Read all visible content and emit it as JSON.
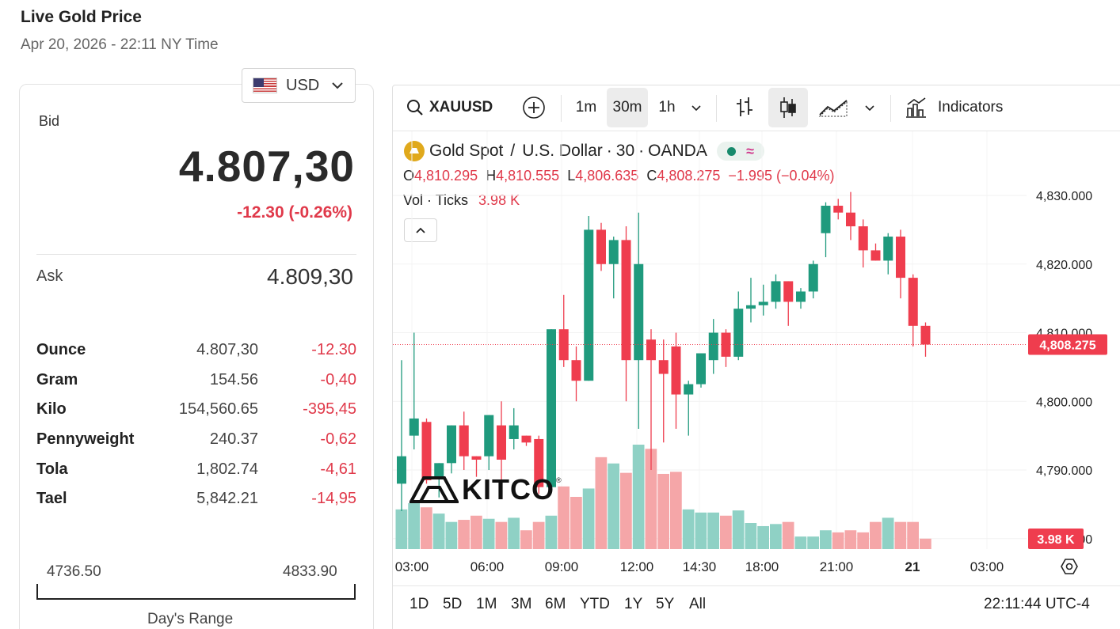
{
  "header": {
    "title": "Live Gold Price",
    "datetime": "Apr 20, 2026 - 22:11 NY Time"
  },
  "currency": {
    "code": "USD",
    "flag_icon": "us-flag-icon"
  },
  "quote": {
    "bid_label": "Bid",
    "bid": "4.807,30",
    "change": "-12.30 (-0.26%)",
    "ask_label": "Ask",
    "ask": "4.809,30"
  },
  "units": [
    {
      "name": "Ounce",
      "value": "4.807,30",
      "change": "-12.30"
    },
    {
      "name": "Gram",
      "value": "154.56",
      "change": "-0,40"
    },
    {
      "name": "Kilo",
      "value": "154,560.65",
      "change": "-395,45"
    },
    {
      "name": "Pennyweight",
      "value": "240.37",
      "change": "-0,62"
    },
    {
      "name": "Tola",
      "value": "1,802.74",
      "change": "-4,61"
    },
    {
      "name": "Tael",
      "value": "5,842.21",
      "change": "-14,95"
    }
  ],
  "day_range": {
    "low": "4736.50",
    "high": "4833.90",
    "label": "Day's Range"
  },
  "toolbar": {
    "symbol": "XAUUSD",
    "intervals": [
      "1m",
      "30m",
      "1h"
    ],
    "active_interval": "30m",
    "indicators_label": "Indicators"
  },
  "legend": {
    "name": "Gold Spot",
    "sep1": "/",
    "quote_name": "U.S. Dollar",
    "dot1": "·",
    "interval": "30",
    "dot2": "·",
    "source": "OANDA",
    "o_label": "O",
    "o": "4,810.295",
    "h_label": "H",
    "h": "4,810.555",
    "l_label": "L",
    "l": "4,806.635",
    "c_label": "C",
    "c": "4,808.275",
    "chg": "−1.995 (−0.04%)",
    "vol_label": "Vol · Ticks",
    "vol_value": "3.98 K"
  },
  "bottom": {
    "ranges": [
      "1D",
      "5D",
      "1M",
      "3M",
      "6M",
      "YTD",
      "1Y",
      "5Y",
      "All"
    ],
    "clock": "22:11:44 UTC-4"
  },
  "watermark": "KITCO",
  "colors": {
    "up": "#1f9a7d",
    "down": "#ef3d4e",
    "up_vol": "#8fd1c5",
    "down_vol": "#f5a6a8",
    "accent_red": "#e0394a"
  },
  "chart_data": {
    "type": "candlestick",
    "y_ticks": [
      "4,830.000",
      "4,820.000",
      "4,810.000",
      "4,800.000",
      "4,790.000",
      "4,780.000"
    ],
    "x_ticks": [
      "03:00",
      "06:00",
      "09:00",
      "12:00",
      "14:30",
      "18:00",
      "21:00",
      "21",
      "03:00"
    ],
    "ylim": [
      4780,
      4832
    ],
    "last_price": "4,808.275",
    "last_volume": "3.98 K",
    "candles": [
      {
        "o": 4788.0,
        "h": 4806.0,
        "l": 4784.0,
        "c": 4792.0,
        "v": 0.38
      },
      {
        "o": 4795.0,
        "h": 4810.0,
        "l": 4793.0,
        "c": 4797.5,
        "v": 0.44
      },
      {
        "o": 4797.0,
        "h": 4797.5,
        "l": 4788.0,
        "c": 4788.5,
        "v": 0.4
      },
      {
        "o": 4789.0,
        "h": 4791.0,
        "l": 4786.0,
        "c": 4791.0,
        "v": 0.34
      },
      {
        "o": 4791.0,
        "h": 4796.5,
        "l": 4789.5,
        "c": 4796.5,
        "v": 0.26
      },
      {
        "o": 4796.5,
        "h": 4798.5,
        "l": 4790.0,
        "c": 4792.0,
        "v": 0.28
      },
      {
        "o": 4792.0,
        "h": 4792.0,
        "l": 4789.0,
        "c": 4791.5,
        "v": 0.32
      },
      {
        "o": 4792.0,
        "h": 4798.0,
        "l": 4790.0,
        "c": 4798.0,
        "v": 0.29
      },
      {
        "o": 4796.5,
        "h": 4800.0,
        "l": 4786.5,
        "c": 4791.5,
        "v": 0.26
      },
      {
        "o": 4794.5,
        "h": 4799.0,
        "l": 4793.0,
        "c": 4796.5,
        "v": 0.3
      },
      {
        "o": 4795.0,
        "h": 4795.0,
        "l": 4793.5,
        "c": 4794.0,
        "v": 0.18
      },
      {
        "o": 4794.5,
        "h": 4795.0,
        "l": 4786.5,
        "c": 4787.5,
        "v": 0.26
      },
      {
        "o": 4787.5,
        "h": 4810.5,
        "l": 4787.0,
        "c": 4810.5,
        "v": 0.32
      },
      {
        "o": 4810.5,
        "h": 4815.5,
        "l": 4805.0,
        "c": 4806.0,
        "v": 0.6
      },
      {
        "o": 4806.0,
        "h": 4808.0,
        "l": 4800.0,
        "c": 4803.0,
        "v": 0.5
      },
      {
        "o": 4803.0,
        "h": 4827.0,
        "l": 4803.0,
        "c": 4825.0,
        "v": 0.58
      },
      {
        "o": 4825.0,
        "h": 4826.0,
        "l": 4819.0,
        "c": 4820.0,
        "v": 0.88
      },
      {
        "o": 4820.0,
        "h": 4824.0,
        "l": 4815.0,
        "c": 4823.5,
        "v": 0.82
      },
      {
        "o": 4823.5,
        "h": 4825.5,
        "l": 4800.0,
        "c": 4806.0,
        "v": 0.73
      },
      {
        "o": 4806.0,
        "h": 4827.5,
        "l": 4796.0,
        "c": 4820.0,
        "v": 1.0
      },
      {
        "o": 4809.0,
        "h": 4810.5,
        "l": 4790.0,
        "c": 4806.0,
        "v": 0.96
      },
      {
        "o": 4806.0,
        "h": 4809.0,
        "l": 4794.0,
        "c": 4804.0,
        "v": 0.72
      },
      {
        "o": 4808.0,
        "h": 4810.0,
        "l": 4796.0,
        "c": 4801.0,
        "v": 0.74
      },
      {
        "o": 4801.0,
        "h": 4803.0,
        "l": 4795.0,
        "c": 4802.5,
        "v": 0.38
      },
      {
        "o": 4802.5,
        "h": 4807.0,
        "l": 4802.0,
        "c": 4807.0,
        "v": 0.35
      },
      {
        "o": 4806.0,
        "h": 4812.0,
        "l": 4804.0,
        "c": 4810.0,
        "v": 0.35
      },
      {
        "o": 4810.0,
        "h": 4810.5,
        "l": 4805.0,
        "c": 4806.5,
        "v": 0.32
      },
      {
        "o": 4806.5,
        "h": 4816.0,
        "l": 4806.0,
        "c": 4813.5,
        "v": 0.37
      },
      {
        "o": 4813.5,
        "h": 4818.0,
        "l": 4811.5,
        "c": 4814.0,
        "v": 0.25
      },
      {
        "o": 4814.0,
        "h": 4817.0,
        "l": 4812.5,
        "c": 4814.5,
        "v": 0.22
      },
      {
        "o": 4814.5,
        "h": 4818.5,
        "l": 4813.5,
        "c": 4817.5,
        "v": 0.24
      },
      {
        "o": 4817.5,
        "h": 4817.5,
        "l": 4811.0,
        "c": 4814.5,
        "v": 0.26
      },
      {
        "o": 4814.5,
        "h": 4816.5,
        "l": 4813.5,
        "c": 4816.0,
        "v": 0.12
      },
      {
        "o": 4816.0,
        "h": 4820.5,
        "l": 4815.0,
        "c": 4820.0,
        "v": 0.12
      },
      {
        "o": 4824.5,
        "h": 4829.0,
        "l": 4821.0,
        "c": 4828.5,
        "v": 0.18
      },
      {
        "o": 4828.5,
        "h": 4829.5,
        "l": 4826.5,
        "c": 4827.5,
        "v": 0.16
      },
      {
        "o": 4827.5,
        "h": 4830.5,
        "l": 4823.5,
        "c": 4825.5,
        "v": 0.18
      },
      {
        "o": 4825.5,
        "h": 4826.5,
        "l": 4819.5,
        "c": 4822.0,
        "v": 0.16
      },
      {
        "o": 4822.0,
        "h": 4823.0,
        "l": 4820.5,
        "c": 4820.5,
        "v": 0.26
      },
      {
        "o": 4820.5,
        "h": 4824.5,
        "l": 4818.5,
        "c": 4824.0,
        "v": 0.3
      },
      {
        "o": 4824.0,
        "h": 4825.0,
        "l": 4815.0,
        "c": 4818.0,
        "v": 0.26
      },
      {
        "o": 4818.0,
        "h": 4818.5,
        "l": 4808.0,
        "c": 4811.0,
        "v": 0.26
      },
      {
        "o": 4811.0,
        "h": 4811.5,
        "l": 4806.5,
        "c": 4808.275,
        "v": 0.1
      }
    ]
  }
}
